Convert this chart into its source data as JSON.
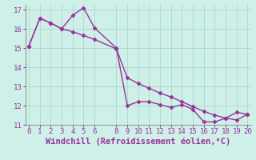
{
  "xlabel": "Windchill (Refroidissement éolien,°C)",
  "bg_color": "#cef0e8",
  "line_color": "#993399",
  "series1_x": [
    0,
    1,
    2,
    3,
    4,
    5,
    6,
    8,
    9,
    10,
    11,
    12,
    13,
    14,
    15,
    16,
    17,
    18,
    19,
    20
  ],
  "series1_y": [
    15.1,
    16.55,
    16.3,
    16.0,
    16.7,
    17.1,
    16.05,
    15.0,
    12.0,
    12.2,
    12.2,
    12.05,
    11.9,
    12.05,
    11.8,
    11.15,
    11.15,
    11.35,
    11.65,
    11.55
  ],
  "series2_x": [
    0,
    1,
    2,
    3,
    4,
    5,
    6,
    8,
    9,
    10,
    11,
    12,
    13,
    14,
    15,
    16,
    17,
    18,
    19,
    20
  ],
  "series2_y": [
    15.1,
    16.55,
    16.3,
    16.0,
    15.85,
    15.65,
    15.45,
    14.95,
    13.45,
    13.15,
    12.9,
    12.65,
    12.45,
    12.2,
    11.95,
    11.7,
    11.5,
    11.35,
    11.25,
    11.55
  ],
  "ylim": [
    11.0,
    17.25
  ],
  "xlim": [
    -0.3,
    20.3
  ],
  "yticks": [
    11,
    12,
    13,
    14,
    15,
    16,
    17
  ],
  "xticks": [
    0,
    1,
    2,
    3,
    4,
    5,
    6,
    8,
    9,
    10,
    11,
    12,
    13,
    14,
    15,
    16,
    17,
    18,
    19,
    20
  ],
  "grid_color": "#aad8cc",
  "marker": "D",
  "markersize": 2.5,
  "linewidth": 1.0,
  "xlabel_fontsize": 7.5,
  "tick_fontsize": 6.5
}
